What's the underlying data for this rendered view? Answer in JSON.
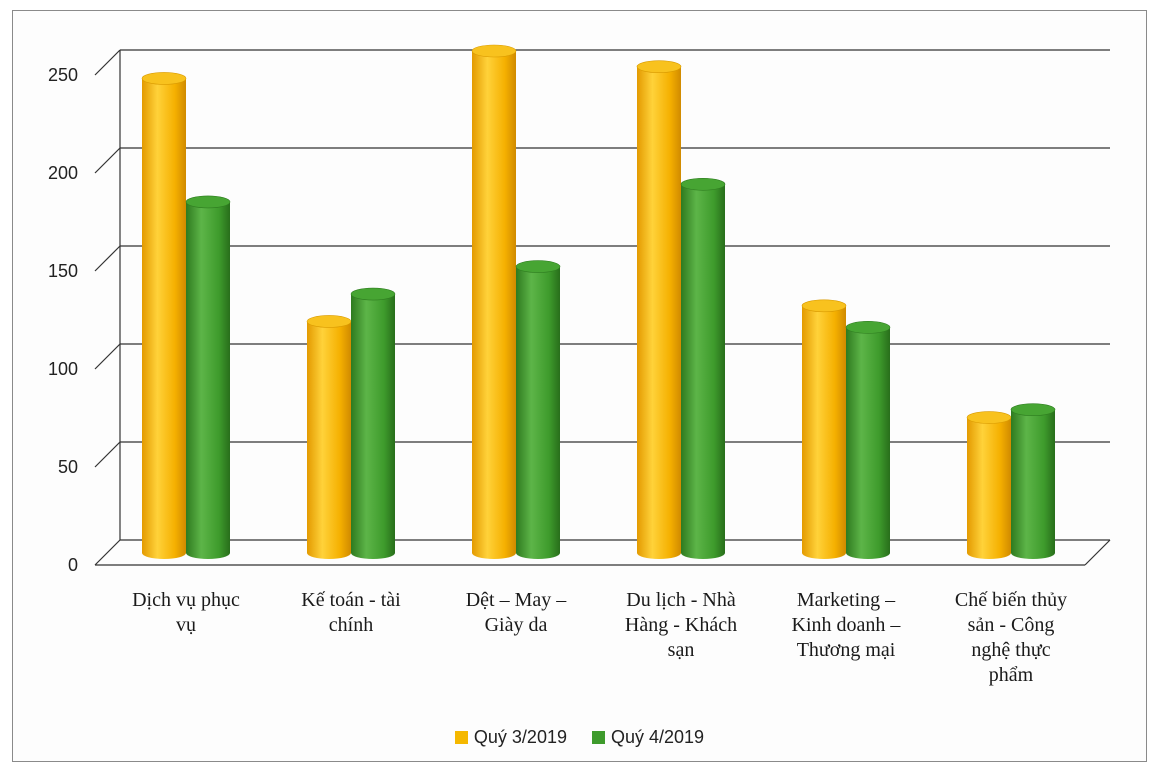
{
  "chart_data": {
    "type": "bar",
    "variant": "3d-cylinder",
    "categories": [
      [
        "Dịch vụ phục",
        "vụ"
      ],
      [
        "Kế toán - tài",
        "chính"
      ],
      [
        "Dệt – May –",
        "Giày da"
      ],
      [
        "Du lịch - Nhà",
        "Hàng - Khách",
        "sạn"
      ],
      [
        "Marketing –",
        "Kinh doanh –",
        "Thương mại"
      ],
      [
        "Chế biến thủy",
        "sản - Công",
        "nghệ thực",
        "phẩm"
      ]
    ],
    "series": [
      {
        "name": "Quý 3/2019",
        "color": "#F5B800",
        "values": [
          236,
          112,
          250,
          242,
          120,
          63
        ]
      },
      {
        "name": "Quý 4/2019",
        "color": "#3E9B2C",
        "values": [
          173,
          126,
          140,
          182,
          109,
          67
        ]
      }
    ],
    "ylim": [
      0,
      250
    ],
    "yticks": [
      0,
      50,
      100,
      150,
      200,
      250
    ],
    "grid": true,
    "legend": "bottom"
  }
}
